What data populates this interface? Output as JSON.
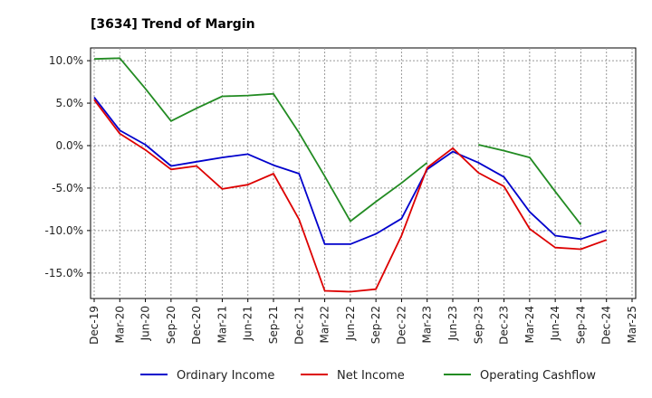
{
  "chart_data": {
    "type": "line",
    "title": "[3634]  Trend of Margin",
    "xlabel": "",
    "ylabel": "",
    "ylim": [
      -18.0,
      11.5
    ],
    "y_ticks": [
      "10.0%",
      "5.0%",
      "0.0%",
      "-5.0%",
      "-10.0%",
      "-15.0%"
    ],
    "y_tick_values": [
      10,
      5,
      0,
      -5,
      -10,
      -15
    ],
    "categories": [
      "Dec-19",
      "Mar-20",
      "Jun-20",
      "Sep-20",
      "Dec-20",
      "Mar-21",
      "Jun-21",
      "Sep-21",
      "Dec-21",
      "Mar-22",
      "Jun-22",
      "Sep-22",
      "Dec-22",
      "Mar-23",
      "Jun-23",
      "Sep-23",
      "Dec-23",
      "Mar-24",
      "Jun-24",
      "Sep-24",
      "Dec-24",
      "Mar-25"
    ],
    "grid": true,
    "legend_position": "bottom",
    "series": [
      {
        "name": "Ordinary Income",
        "color": "#0000cc",
        "values": [
          5.7,
          1.8,
          0.1,
          -2.4,
          -1.9,
          -1.4,
          -1.0,
          -2.3,
          -3.3,
          -11.6,
          -11.6,
          -10.4,
          -8.6,
          -2.8,
          -0.7,
          -2.0,
          -3.7,
          -7.8,
          -10.6,
          -11.0,
          -10.0,
          null
        ]
      },
      {
        "name": "Net Income",
        "color": "#dd0000",
        "values": [
          5.4,
          1.4,
          -0.5,
          -2.8,
          -2.4,
          -5.1,
          -4.6,
          -3.3,
          -8.7,
          -17.1,
          -17.2,
          -16.9,
          -10.6,
          -2.6,
          -0.3,
          -3.2,
          -4.8,
          -9.8,
          -12.0,
          -12.2,
          -11.1,
          null
        ]
      },
      {
        "name": "Operating Cashflow",
        "color": "#228b22",
        "values": [
          10.2,
          10.3,
          6.7,
          2.9,
          4.4,
          5.8,
          5.9,
          6.1,
          1.5,
          -3.6,
          -8.9,
          -6.6,
          -4.4,
          -2.0,
          null,
          0.1,
          -0.6,
          -1.4,
          -5.4,
          -9.3,
          null,
          null
        ]
      }
    ]
  }
}
